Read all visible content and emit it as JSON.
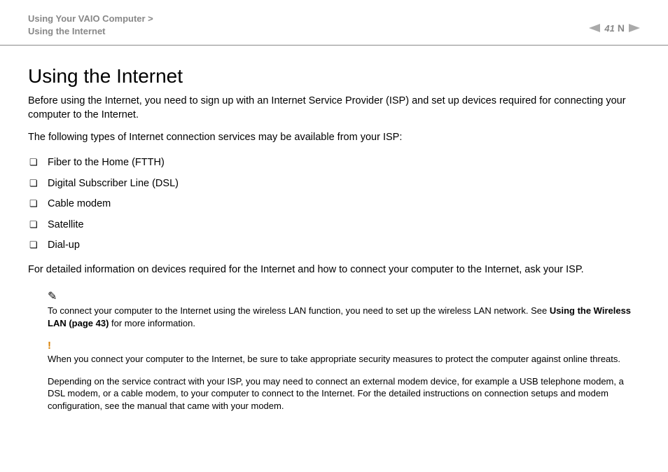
{
  "header": {
    "breadcrumb_line1": "Using Your VAIO Computer >",
    "breadcrumb_line2": "Using the Internet",
    "page_number": "41",
    "N_mark": "N"
  },
  "main": {
    "title": "Using the Internet",
    "intro1": "Before using the Internet, you need to sign up with an Internet Service Provider (ISP) and set up devices required for connecting your computer to the Internet.",
    "intro2": "The following types of Internet connection services may be available from your ISP:",
    "services": [
      "Fiber to the Home (FTTH)",
      "Digital Subscriber Line (DSL)",
      "Cable modem",
      "Satellite",
      "Dial-up"
    ],
    "detail": "For detailed information on devices required for the Internet and how to connect your computer to the Internet, ask your ISP.",
    "note1_pre": "To connect your computer to the Internet using the wireless LAN function, you need to set up the wireless LAN network. See ",
    "note1_bold": "Using the Wireless LAN (page 43)",
    "note1_post": " for more information.",
    "warn": "When you connect your computer to the Internet, be sure to take appropriate security measures to protect the computer against online threats.",
    "note2": "Depending on the service contract with your ISP, you may need to connect an external modem device, for example a USB telephone modem, a DSL modem, or a cable modem, to your computer to connect to the Internet. For the detailed instructions on connection setups and modem configuration, see the manual that came with your modem."
  }
}
